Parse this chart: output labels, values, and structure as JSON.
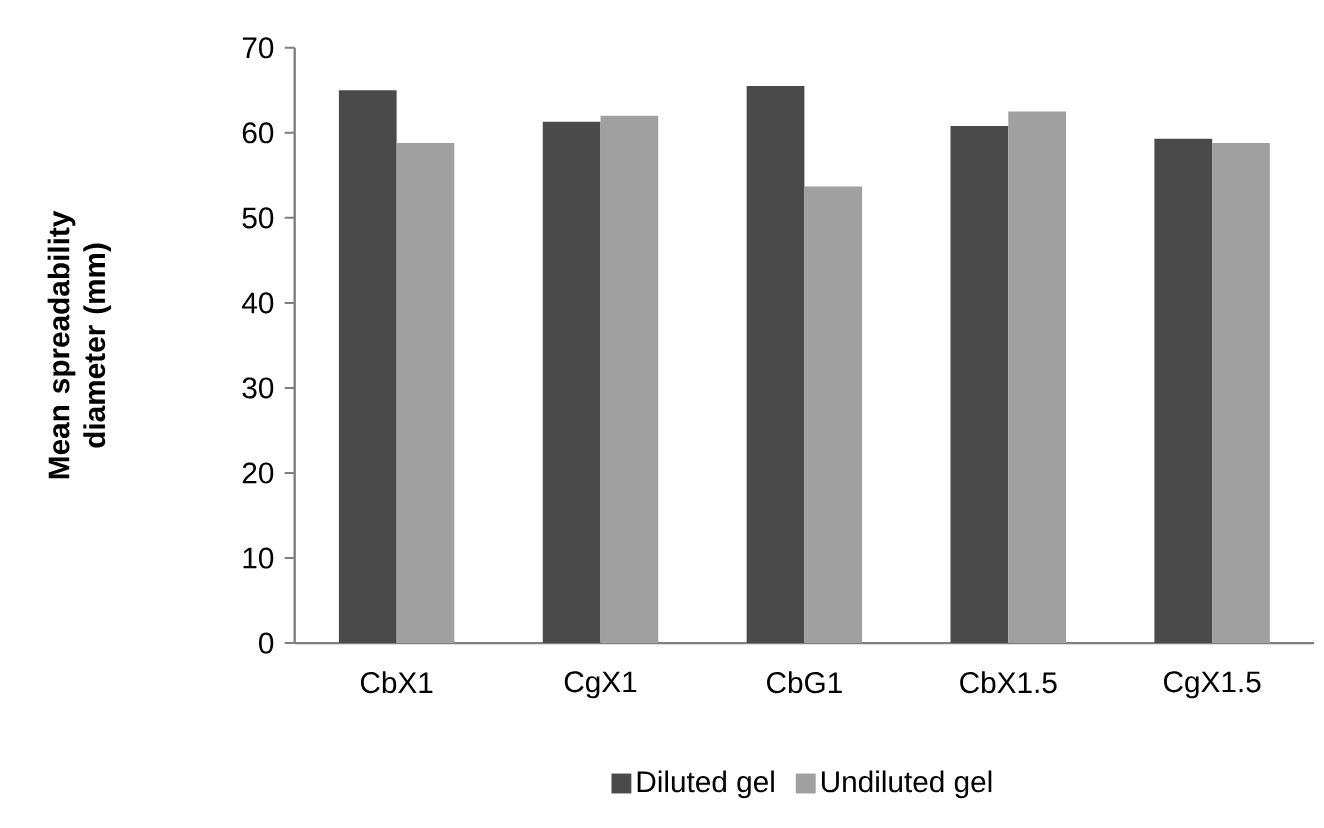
{
  "chart_data": {
    "type": "bar",
    "ylabel": "Mean spreadability diameter (mm)",
    "categories": [
      "CbX1",
      "CgX1",
      "CbG1",
      "CbX1.5",
      "CgX1.5"
    ],
    "series": [
      {
        "name": "Diluted gel",
        "color": "#4a4a4a",
        "values": [
          65.0,
          61.3,
          65.5,
          60.8,
          59.3
        ]
      },
      {
        "name": "Undiluted gel",
        "color": "#a0a0a0",
        "values": [
          58.8,
          62.0,
          53.7,
          62.5,
          58.8
        ]
      }
    ],
    "ylim": [
      0,
      70
    ],
    "yticks": [
      0,
      10,
      20,
      30,
      40,
      50,
      60,
      70
    ],
    "grid": false,
    "legend": "bottom"
  }
}
